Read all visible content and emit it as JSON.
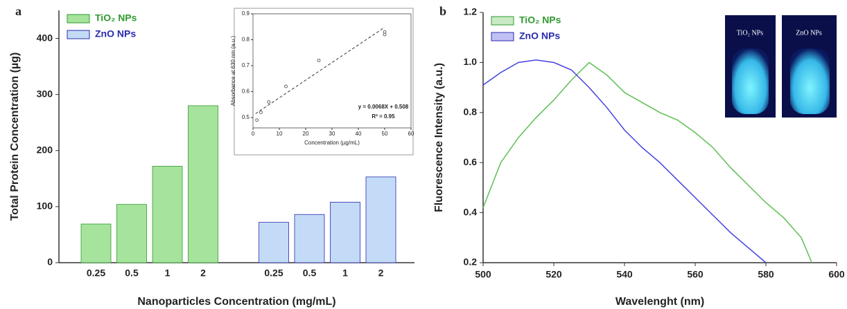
{
  "chart_data": [
    {
      "type": "bar",
      "panel_label": "a",
      "categories": [
        "0.25",
        "0.5",
        "1",
        "2"
      ],
      "series": [
        {
          "name": "TiO₂ NPs",
          "color": "#a6e39c",
          "edge": "#2f9a2f",
          "values": [
            69,
            104,
            172,
            280
          ]
        },
        {
          "name": "ZnO NPs",
          "color": "#c3dbf6",
          "edge": "#2a2ab0",
          "values": [
            72,
            86,
            108,
            153
          ]
        }
      ],
      "ylim": [
        0,
        450
      ],
      "yticks": [
        0,
        100,
        200,
        300,
        400
      ],
      "xlabel": "Nanoparticles Concentration (mg/mL)",
      "ylabel": "Total Protein Concentration (µg)",
      "legend": "top-left"
    },
    {
      "type": "scatter",
      "x": [
        1.5,
        3,
        6,
        12.5,
        25,
        50,
        50
      ],
      "values": [
        0.49,
        0.52,
        0.56,
        0.62,
        0.72,
        0.82,
        0.83
      ],
      "fit_line": {
        "x": [
          1,
          50
        ],
        "values": [
          0.515,
          0.848
        ]
      },
      "xlim": [
        0,
        60
      ],
      "xticks": [
        0,
        10,
        20,
        30,
        40,
        50,
        60
      ],
      "ylim": [
        0.46,
        0.9
      ],
      "yticks": [
        0.5,
        0.6,
        0.7,
        0.8,
        0.9
      ],
      "xlabel": "Concentration (µg/mL)",
      "ylabel": "Absorbance at 630 nm (a.u.)",
      "annotations": [
        "y = 0.0068X + 0.508",
        "R² = 0.95"
      ]
    },
    {
      "type": "line",
      "panel_label": "b",
      "series": [
        {
          "name": "TiO₂ NPs",
          "color": "#5cbf52",
          "edge": "#2f9a2f",
          "x": [
            500,
            505,
            510,
            515,
            520,
            525,
            530,
            535,
            540,
            545,
            550,
            555,
            560,
            565,
            570,
            575,
            580,
            585,
            590,
            593
          ],
          "values": [
            0.42,
            0.6,
            0.7,
            0.78,
            0.85,
            0.93,
            1.0,
            0.95,
            0.88,
            0.84,
            0.8,
            0.77,
            0.72,
            0.66,
            0.58,
            0.51,
            0.44,
            0.38,
            0.3,
            0.2
          ]
        },
        {
          "name": "ZnO NPs",
          "color": "#4242e0",
          "edge": "#2a2ab0",
          "x": [
            500,
            505,
            510,
            515,
            520,
            525,
            530,
            535,
            540,
            545,
            550,
            555,
            560,
            565,
            570,
            575,
            580
          ],
          "values": [
            0.91,
            0.96,
            1.0,
            1.01,
            1.0,
            0.97,
            0.9,
            0.82,
            0.73,
            0.66,
            0.6,
            0.53,
            0.46,
            0.39,
            0.32,
            0.26,
            0.2
          ]
        }
      ],
      "xlim": [
        500,
        600
      ],
      "xticks": [
        500,
        520,
        540,
        560,
        580,
        600
      ],
      "ylim": [
        0.2,
        1.2
      ],
      "yticks": [
        0.2,
        0.4,
        0.6,
        0.8,
        {
          "value": 1,
          "label": "1.0"
        },
        1.2
      ],
      "xlabel": "Wavelenght (nm)",
      "ylabel": "Fluorescence Intensity (a.u.)",
      "legend": "top-left",
      "image_labels": [
        "TiO₂ NPs",
        "ZnO NPs"
      ]
    }
  ]
}
